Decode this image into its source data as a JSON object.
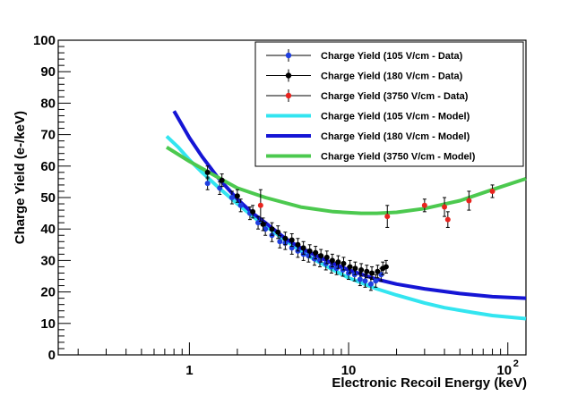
{
  "chart_data": {
    "type": "scatter",
    "xlabel": "Electronic Recoil Energy (keV)",
    "ylabel": "Charge Yield (e-/keV)",
    "xscale": "log",
    "xlim": [
      0.15,
      130
    ],
    "ylim": [
      0,
      100
    ],
    "xticks": [
      {
        "value": 1,
        "base": "1",
        "exp": ""
      },
      {
        "value": 10,
        "base": "10",
        "exp": ""
      },
      {
        "value": 100,
        "base": "10",
        "exp": "2"
      }
    ],
    "yticks": [
      0,
      10,
      20,
      30,
      40,
      50,
      60,
      70,
      80,
      90,
      100
    ],
    "grid": false,
    "legend_position": "top-right",
    "series": [
      {
        "name": "Charge Yield (105 V/cm - Data)",
        "kind": "points",
        "color": "#1f3fe0",
        "points": [
          [
            1.3,
            54.5
          ],
          [
            1.55,
            53
          ],
          [
            1.85,
            50
          ],
          [
            2.1,
            47.5
          ],
          [
            2.4,
            45
          ],
          [
            2.7,
            42
          ],
          [
            3.0,
            40
          ],
          [
            3.3,
            38
          ],
          [
            3.7,
            36
          ],
          [
            4.0,
            35.5
          ],
          [
            4.4,
            34
          ],
          [
            4.8,
            33
          ],
          [
            5.2,
            32
          ],
          [
            5.6,
            31.5
          ],
          [
            6.1,
            30.5
          ],
          [
            6.6,
            30
          ],
          [
            7.2,
            29
          ],
          [
            7.8,
            28
          ],
          [
            8.4,
            27.5
          ],
          [
            9.2,
            27
          ],
          [
            10,
            26
          ],
          [
            10.9,
            25.5
          ],
          [
            11.8,
            24
          ],
          [
            12.7,
            23.5
          ],
          [
            13.8,
            22.5
          ],
          [
            14.8,
            23.5
          ],
          [
            16.0,
            25.5
          ]
        ],
        "errors": [
          2,
          2,
          2,
          2,
          2,
          2,
          2,
          2,
          2,
          2,
          2,
          2,
          2,
          2,
          2,
          2,
          2,
          2,
          2,
          2,
          2,
          2,
          2,
          2,
          2,
          2,
          2
        ]
      },
      {
        "name": "Charge Yield (180 V/cm - Data)",
        "kind": "points",
        "color": "#000000",
        "points": [
          [
            1.3,
            58
          ],
          [
            1.6,
            55.5
          ],
          [
            2.0,
            50.5
          ],
          [
            2.5,
            45.5
          ],
          [
            2.9,
            41.5
          ],
          [
            3.3,
            40
          ],
          [
            3.6,
            39
          ],
          [
            4.0,
            37
          ],
          [
            4.4,
            36.5
          ],
          [
            4.8,
            35
          ],
          [
            5.2,
            34
          ],
          [
            5.7,
            33
          ],
          [
            6.2,
            32.5
          ],
          [
            6.7,
            31.5
          ],
          [
            7.3,
            31
          ],
          [
            7.9,
            30
          ],
          [
            8.6,
            29.5
          ],
          [
            9.3,
            29
          ],
          [
            10.2,
            28
          ],
          [
            11.0,
            27.5
          ],
          [
            12.0,
            27
          ],
          [
            13.0,
            26.5
          ],
          [
            14.0,
            26
          ],
          [
            15.2,
            26.5
          ],
          [
            16.4,
            27.5
          ],
          [
            17.2,
            28
          ]
        ],
        "errors": [
          2,
          2,
          2,
          2,
          2,
          2,
          2,
          2,
          2,
          2,
          2,
          2,
          2,
          2,
          2,
          2,
          2,
          2,
          2,
          2,
          2,
          2,
          2,
          2,
          2,
          2
        ]
      },
      {
        "name": "Charge Yield (3750 V/cm - Data)",
        "kind": "points",
        "color": "#e8231e",
        "points": [
          [
            2.8,
            47.5
          ],
          [
            17.5,
            44
          ],
          [
            30,
            47.5
          ],
          [
            40,
            47
          ],
          [
            42,
            43
          ],
          [
            57,
            49
          ],
          [
            80,
            52
          ]
        ],
        "errors": [
          5,
          3.5,
          2,
          3,
          2.5,
          3,
          2
        ]
      },
      {
        "name": "Charge Yield (105 V/cm - Model)",
        "kind": "line",
        "color": "#33e5f0",
        "points": [
          [
            0.72,
            69.5
          ],
          [
            0.85,
            66
          ],
          [
            1.0,
            62
          ],
          [
            1.2,
            58
          ],
          [
            1.5,
            53.5
          ],
          [
            2.0,
            48
          ],
          [
            2.5,
            44
          ],
          [
            3.0,
            41
          ],
          [
            4.0,
            36.5
          ],
          [
            5.0,
            33
          ],
          [
            6.0,
            30.5
          ],
          [
            8.0,
            27
          ],
          [
            10,
            24.5
          ],
          [
            15,
            21
          ],
          [
            20,
            19
          ],
          [
            30,
            16.5
          ],
          [
            40,
            15
          ],
          [
            60,
            13.5
          ],
          [
            80,
            12.5
          ],
          [
            130,
            11.5
          ]
        ]
      },
      {
        "name": "Charge Yield (180 V/cm - Model)",
        "kind": "line",
        "color": "#1515d5",
        "points": [
          [
            0.8,
            77.5
          ],
          [
            0.9,
            73
          ],
          [
            1.0,
            69
          ],
          [
            1.2,
            63
          ],
          [
            1.5,
            56.5
          ],
          [
            2.0,
            49.5
          ],
          [
            2.5,
            45
          ],
          [
            3.0,
            42
          ],
          [
            4.0,
            37
          ],
          [
            5.0,
            34
          ],
          [
            6.0,
            32
          ],
          [
            8.0,
            29
          ],
          [
            10,
            27
          ],
          [
            15,
            24
          ],
          [
            20,
            22.5
          ],
          [
            30,
            21
          ],
          [
            50,
            19.5
          ],
          [
            80,
            18.5
          ],
          [
            130,
            18
          ]
        ]
      },
      {
        "name": "Charge Yield (3750 V/cm - Model)",
        "kind": "line",
        "color": "#4cc94f",
        "points": [
          [
            0.72,
            66
          ],
          [
            1.0,
            61.5
          ],
          [
            1.5,
            56.5
          ],
          [
            2.0,
            53
          ],
          [
            3.0,
            50
          ],
          [
            5.0,
            47
          ],
          [
            8.0,
            45.5
          ],
          [
            12,
            45
          ],
          [
            15,
            45
          ],
          [
            20,
            45.3
          ],
          [
            30,
            46.5
          ],
          [
            50,
            49
          ],
          [
            80,
            52.5
          ],
          [
            130,
            56
          ]
        ]
      }
    ]
  }
}
